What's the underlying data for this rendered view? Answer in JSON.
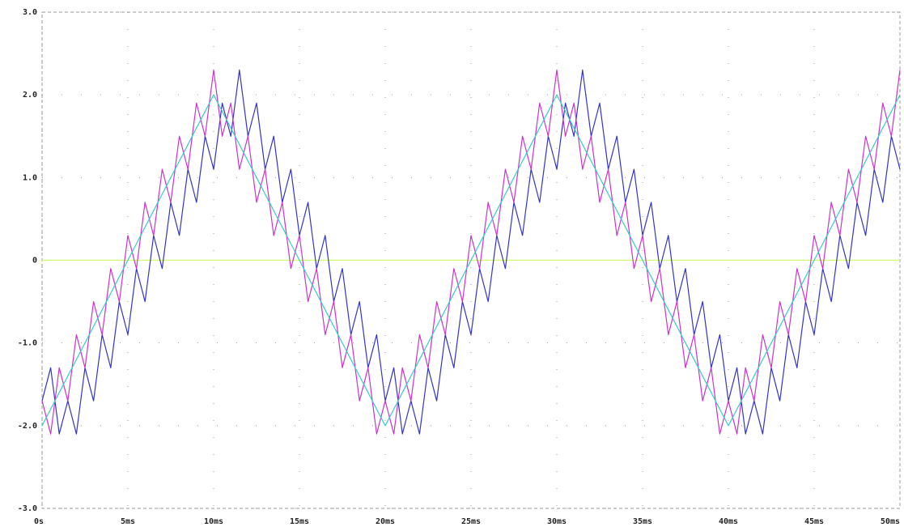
{
  "chart_data": {
    "type": "line",
    "x": [
      0,
      0.5,
      1,
      1.5,
      2,
      2.5,
      3,
      3.5,
      4,
      4.5,
      5,
      5.5,
      6,
      6.5,
      7,
      7.5,
      8,
      8.5,
      9,
      9.5,
      10,
      10.5,
      11,
      11.5,
      12,
      12.5,
      13,
      13.5,
      14,
      14.5,
      15,
      15.5,
      16,
      16.5,
      17,
      17.5,
      18,
      18.5,
      19,
      19.5,
      20,
      20.5,
      21,
      21.5,
      22,
      22.5,
      23,
      23.5,
      24,
      24.5,
      25,
      25.5,
      26,
      26.5,
      27,
      27.5,
      28,
      28.5,
      29,
      29.5,
      30,
      30.5,
      31,
      31.5,
      32,
      32.5,
      33,
      33.5,
      34,
      34.5,
      35,
      35.5,
      36,
      36.5,
      37,
      37.5,
      38,
      38.5,
      39,
      39.5,
      40,
      40.5,
      41,
      41.5,
      42,
      42.5,
      43,
      43.5,
      44,
      44.5,
      45,
      45.5,
      46,
      46.5,
      47,
      47.5,
      48,
      48.5,
      49,
      49.5,
      50
    ],
    "series": [
      {
        "color": "#ccff66",
        "x": [
          0,
          50
        ],
        "values": [
          0,
          0
        ]
      },
      {
        "color": "#3333cc",
        "values": [
          -1.7,
          -1.3,
          -2.1,
          -1.7,
          -2.1,
          -1.3,
          -1.7,
          -0.9,
          -1.3,
          -0.5,
          -0.9,
          -0.1,
          -0.5,
          0.3,
          -0.1,
          0.7,
          0.3,
          1.1,
          0.7,
          1.5,
          1.1,
          1.9,
          1.5,
          2.3,
          1.5,
          1.9,
          1.1,
          1.5,
          0.7,
          1.1,
          0.3,
          0.7,
          -0.1,
          0.3,
          -0.5,
          -0.1,
          -0.9,
          -0.5,
          -1.3,
          -0.9,
          -1.7,
          -1.3,
          -2.1,
          -1.7,
          -2.1,
          -1.3,
          -1.7,
          -0.9,
          -1.3,
          -0.5,
          -0.9,
          -0.1,
          -0.5,
          0.3,
          -0.1,
          0.7,
          0.3,
          1.1,
          0.7,
          1.5,
          1.1,
          1.9,
          1.5,
          2.3,
          1.5,
          1.9,
          1.1,
          1.5,
          0.7,
          1.1,
          0.3,
          0.7,
          -0.1,
          0.3,
          -0.5,
          -0.1,
          -0.9,
          -0.5,
          -1.3,
          -0.9,
          -1.7,
          -1.3,
          -2.1,
          -1.7,
          -2.1,
          -1.3,
          -1.7,
          -0.9,
          -1.3,
          -0.5,
          -0.9,
          -0.1,
          -0.5,
          0.3,
          -0.1,
          0.7,
          0.3,
          1.1,
          0.7,
          1.5,
          1.1
        ]
      },
      {
        "color": "#cc33cc",
        "values": [
          -1.7,
          -2.1,
          -1.3,
          -1.7,
          -0.9,
          -1.3,
          -0.5,
          -0.9,
          -0.1,
          -0.5,
          0.3,
          -0.1,
          0.7,
          0.3,
          1.1,
          0.7,
          1.5,
          1.1,
          1.9,
          1.5,
          2.3,
          1.5,
          1.9,
          1.1,
          1.5,
          0.7,
          1.1,
          0.3,
          0.7,
          -0.1,
          0.3,
          -0.5,
          -0.1,
          -0.9,
          -0.5,
          -1.3,
          -0.9,
          -1.7,
          -1.3,
          -2.1,
          -1.7,
          -2.1,
          -1.3,
          -1.7,
          -0.9,
          -1.3,
          -0.5,
          -0.9,
          -0.1,
          -0.5,
          0.3,
          -0.1,
          0.7,
          0.3,
          1.1,
          0.7,
          1.5,
          1.1,
          1.9,
          1.5,
          2.3,
          1.5,
          1.9,
          1.1,
          1.5,
          0.7,
          1.1,
          0.3,
          0.7,
          -0.1,
          0.3,
          -0.5,
          -0.1,
          -0.9,
          -0.5,
          -1.3,
          -0.9,
          -1.7,
          -1.3,
          -2.1,
          -1.7,
          -2.1,
          -1.3,
          -1.7,
          -0.9,
          -1.3,
          -0.5,
          -0.9,
          -0.1,
          -0.5,
          0.3,
          -0.1,
          0.7,
          0.3,
          1.1,
          0.7,
          1.5,
          1.1,
          1.9,
          1.5,
          2.3
        ]
      },
      {
        "color": "#33cccc",
        "x": [
          0,
          10,
          20,
          30,
          40,
          50
        ],
        "values": [
          -2,
          2,
          -2,
          2,
          -2,
          2
        ]
      }
    ],
    "xlim": [
      0,
      50
    ],
    "xticks": [
      {
        "value": 0,
        "label": "0s"
      },
      {
        "value": 5,
        "label": "5ms"
      },
      {
        "value": 10,
        "label": "10ms"
      },
      {
        "value": 15,
        "label": "15ms"
      },
      {
        "value": 20,
        "label": "20ms"
      },
      {
        "value": 25,
        "label": "25ms"
      },
      {
        "value": 30,
        "label": "30ms"
      },
      {
        "value": 35,
        "label": "35ms"
      },
      {
        "value": 40,
        "label": "40ms"
      },
      {
        "value": 45,
        "label": "45ms"
      },
      {
        "value": 50,
        "label": "50ms"
      }
    ],
    "ylim": [
      -3,
      3
    ],
    "yticks": [
      {
        "value": -3,
        "label": "-3.0"
      },
      {
        "value": -2,
        "label": "-2.0"
      },
      {
        "value": -1,
        "label": "-1.0"
      },
      0,
      {
        "value": 1,
        "label": "1.0"
      },
      {
        "value": 2,
        "label": "2.0"
      },
      {
        "value": 3,
        "label": "3.0"
      }
    ],
    "grid": true
  }
}
